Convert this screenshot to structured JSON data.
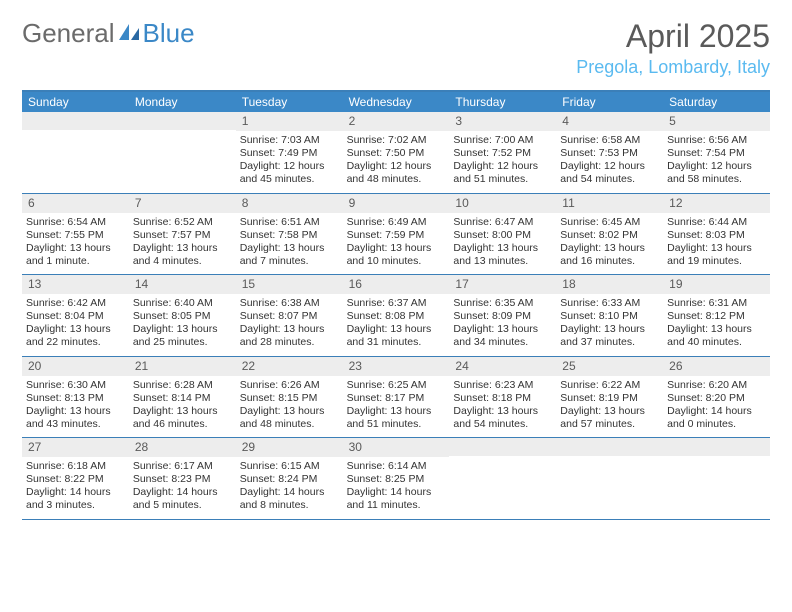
{
  "logo": {
    "word1": "General",
    "word2": "Blue",
    "word1_color": "#6b6b6b",
    "word2_color": "#3b88c7"
  },
  "title": "April 2025",
  "location": "Pregola, Lombardy, Italy",
  "colors": {
    "header_bg": "#3b88c7",
    "header_text": "#ffffff",
    "rule": "#3b7fb8",
    "date_bg": "#ededed",
    "location": "#5abaf0",
    "title": "#5a5a5a"
  },
  "days_of_week": [
    "Sunday",
    "Monday",
    "Tuesday",
    "Wednesday",
    "Thursday",
    "Friday",
    "Saturday"
  ],
  "weeks": [
    [
      {
        "empty": true
      },
      {
        "empty": true
      },
      {
        "date": "1",
        "sunrise": "7:03 AM",
        "sunset": "7:49 PM",
        "daylight": "12 hours and 45 minutes."
      },
      {
        "date": "2",
        "sunrise": "7:02 AM",
        "sunset": "7:50 PM",
        "daylight": "12 hours and 48 minutes."
      },
      {
        "date": "3",
        "sunrise": "7:00 AM",
        "sunset": "7:52 PM",
        "daylight": "12 hours and 51 minutes."
      },
      {
        "date": "4",
        "sunrise": "6:58 AM",
        "sunset": "7:53 PM",
        "daylight": "12 hours and 54 minutes."
      },
      {
        "date": "5",
        "sunrise": "6:56 AM",
        "sunset": "7:54 PM",
        "daylight": "12 hours and 58 minutes."
      }
    ],
    [
      {
        "date": "6",
        "sunrise": "6:54 AM",
        "sunset": "7:55 PM",
        "daylight": "13 hours and 1 minute."
      },
      {
        "date": "7",
        "sunrise": "6:52 AM",
        "sunset": "7:57 PM",
        "daylight": "13 hours and 4 minutes."
      },
      {
        "date": "8",
        "sunrise": "6:51 AM",
        "sunset": "7:58 PM",
        "daylight": "13 hours and 7 minutes."
      },
      {
        "date": "9",
        "sunrise": "6:49 AM",
        "sunset": "7:59 PM",
        "daylight": "13 hours and 10 minutes."
      },
      {
        "date": "10",
        "sunrise": "6:47 AM",
        "sunset": "8:00 PM",
        "daylight": "13 hours and 13 minutes."
      },
      {
        "date": "11",
        "sunrise": "6:45 AM",
        "sunset": "8:02 PM",
        "daylight": "13 hours and 16 minutes."
      },
      {
        "date": "12",
        "sunrise": "6:44 AM",
        "sunset": "8:03 PM",
        "daylight": "13 hours and 19 minutes."
      }
    ],
    [
      {
        "date": "13",
        "sunrise": "6:42 AM",
        "sunset": "8:04 PM",
        "daylight": "13 hours and 22 minutes."
      },
      {
        "date": "14",
        "sunrise": "6:40 AM",
        "sunset": "8:05 PM",
        "daylight": "13 hours and 25 minutes."
      },
      {
        "date": "15",
        "sunrise": "6:38 AM",
        "sunset": "8:07 PM",
        "daylight": "13 hours and 28 minutes."
      },
      {
        "date": "16",
        "sunrise": "6:37 AM",
        "sunset": "8:08 PM",
        "daylight": "13 hours and 31 minutes."
      },
      {
        "date": "17",
        "sunrise": "6:35 AM",
        "sunset": "8:09 PM",
        "daylight": "13 hours and 34 minutes."
      },
      {
        "date": "18",
        "sunrise": "6:33 AM",
        "sunset": "8:10 PM",
        "daylight": "13 hours and 37 minutes."
      },
      {
        "date": "19",
        "sunrise": "6:31 AM",
        "sunset": "8:12 PM",
        "daylight": "13 hours and 40 minutes."
      }
    ],
    [
      {
        "date": "20",
        "sunrise": "6:30 AM",
        "sunset": "8:13 PM",
        "daylight": "13 hours and 43 minutes."
      },
      {
        "date": "21",
        "sunrise": "6:28 AM",
        "sunset": "8:14 PM",
        "daylight": "13 hours and 46 minutes."
      },
      {
        "date": "22",
        "sunrise": "6:26 AM",
        "sunset": "8:15 PM",
        "daylight": "13 hours and 48 minutes."
      },
      {
        "date": "23",
        "sunrise": "6:25 AM",
        "sunset": "8:17 PM",
        "daylight": "13 hours and 51 minutes."
      },
      {
        "date": "24",
        "sunrise": "6:23 AM",
        "sunset": "8:18 PM",
        "daylight": "13 hours and 54 minutes."
      },
      {
        "date": "25",
        "sunrise": "6:22 AM",
        "sunset": "8:19 PM",
        "daylight": "13 hours and 57 minutes."
      },
      {
        "date": "26",
        "sunrise": "6:20 AM",
        "sunset": "8:20 PM",
        "daylight": "14 hours and 0 minutes."
      }
    ],
    [
      {
        "date": "27",
        "sunrise": "6:18 AM",
        "sunset": "8:22 PM",
        "daylight": "14 hours and 3 minutes."
      },
      {
        "date": "28",
        "sunrise": "6:17 AM",
        "sunset": "8:23 PM",
        "daylight": "14 hours and 5 minutes."
      },
      {
        "date": "29",
        "sunrise": "6:15 AM",
        "sunset": "8:24 PM",
        "daylight": "14 hours and 8 minutes."
      },
      {
        "date": "30",
        "sunrise": "6:14 AM",
        "sunset": "8:25 PM",
        "daylight": "14 hours and 11 minutes."
      },
      {
        "empty": true
      },
      {
        "empty": true
      },
      {
        "empty": true
      }
    ]
  ],
  "labels": {
    "sunrise": "Sunrise:",
    "sunset": "Sunset:",
    "daylight": "Daylight:"
  }
}
